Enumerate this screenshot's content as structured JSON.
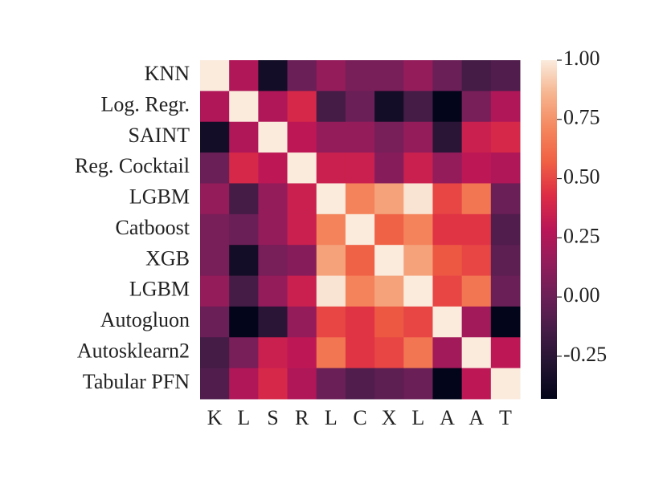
{
  "chart_data": {
    "type": "heatmap",
    "row_labels": [
      "KNN",
      "Log. Regr.",
      "SAINT",
      "Reg. Cocktail",
      "LGBM",
      "Catboost",
      "XGB",
      "LGBM",
      "Autogluon",
      "Autosklearn2",
      "Tabular PFN"
    ],
    "col_labels": [
      "K",
      "L",
      "S",
      "R",
      "L",
      "C",
      "X",
      "L",
      "A",
      "A",
      "T"
    ],
    "values": [
      [
        1.0,
        0.25,
        -0.35,
        0.0,
        0.15,
        0.05,
        0.05,
        0.15,
        0.0,
        -0.15,
        -0.1
      ],
      [
        0.25,
        1.0,
        0.25,
        0.4,
        -0.15,
        0.0,
        -0.35,
        -0.15,
        -0.43,
        0.05,
        0.25
      ],
      [
        -0.35,
        0.25,
        1.0,
        0.3,
        0.15,
        0.15,
        0.05,
        0.15,
        -0.25,
        0.35,
        0.4
      ],
      [
        0.0,
        0.4,
        0.3,
        1.0,
        0.35,
        0.35,
        0.1,
        0.35,
        0.15,
        0.3,
        0.25
      ],
      [
        0.15,
        -0.15,
        0.15,
        0.35,
        1.0,
        0.7,
        0.8,
        0.98,
        0.5,
        0.65,
        0.0
      ],
      [
        0.05,
        0.0,
        0.15,
        0.35,
        0.7,
        1.0,
        0.58,
        0.7,
        0.45,
        0.45,
        -0.1
      ],
      [
        0.05,
        -0.35,
        0.05,
        0.1,
        0.8,
        0.58,
        1.0,
        0.8,
        0.55,
        0.5,
        -0.05
      ],
      [
        0.15,
        -0.15,
        0.15,
        0.35,
        0.98,
        0.7,
        0.8,
        1.0,
        0.5,
        0.65,
        0.0
      ],
      [
        0.0,
        -0.43,
        -0.25,
        0.15,
        0.5,
        0.45,
        0.55,
        0.5,
        1.0,
        0.2,
        -0.43
      ],
      [
        -0.15,
        0.05,
        0.35,
        0.3,
        0.65,
        0.45,
        0.5,
        0.65,
        0.2,
        1.0,
        0.3
      ],
      [
        -0.1,
        0.25,
        0.4,
        0.25,
        0.0,
        -0.1,
        -0.05,
        0.0,
        -0.43,
        0.3,
        1.0
      ]
    ],
    "clim": [
      -0.43,
      1.0
    ],
    "cticks": [
      {
        "value": 1.0,
        "label": "1.00"
      },
      0.75,
      {
        "value": 0.5,
        "label": "0.50"
      },
      0.25,
      {
        "value": 0.0,
        "label": "0.00"
      },
      -0.25
    ],
    "colormap": [
      "#03051a",
      "#221331",
      "#451c47",
      "#6a1f56",
      "#921c5b",
      "#b91657",
      "#dd2c45",
      "#f06043",
      "#f4875e",
      "#f6b48e",
      "#faebdd"
    ]
  }
}
